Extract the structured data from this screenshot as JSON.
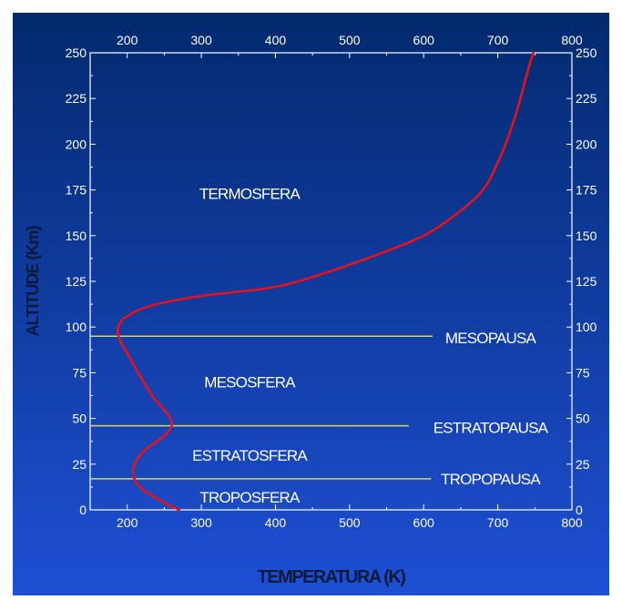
{
  "chart_data": {
    "type": "line",
    "xlabel": "TEMPERATURA (K)",
    "ylabel": "ALTITUDE (Km)",
    "xlim": [
      150,
      800
    ],
    "ylim": [
      0,
      250
    ],
    "xticks": [
      200,
      300,
      400,
      500,
      600,
      700,
      800
    ],
    "yticks": [
      0,
      25,
      50,
      75,
      100,
      125,
      150,
      175,
      200,
      225,
      250
    ],
    "grid": false,
    "series": [
      {
        "color": "#e8101a",
        "x": [
          270,
          250,
          225,
          212,
          208,
          210,
          222,
          248,
          260,
          255,
          238,
          222,
          205,
          190,
          188,
          200,
          235,
          300,
          400,
          470,
          540,
          600,
          645,
          680,
          700,
          715,
          727,
          737,
          744,
          748
        ],
        "y": [
          0,
          4,
          10,
          15,
          20,
          25,
          32,
          40,
          46,
          52,
          60,
          70,
          82,
          93,
          100,
          106,
          112,
          117,
          122,
          130,
          140,
          150,
          162,
          175,
          190,
          205,
          220,
          235,
          245,
          250
        ]
      }
    ],
    "boundaries": [
      {
        "label": "TROPOPAUSA",
        "altitude": 17,
        "x_end": 610,
        "color": "#d8d860"
      },
      {
        "label": "ESTRATOPAUSA",
        "altitude": 46,
        "x_end": 580,
        "color": "#d8d860"
      },
      {
        "label": "MESOPAUSA",
        "altitude": 95,
        "x_end": 612,
        "color": "#d8d860"
      }
    ],
    "regions": [
      {
        "label": "TROPOSFERA",
        "x": 365,
        "y": 7
      },
      {
        "label": "ESTRATOSFERA",
        "x": 365,
        "y": 30
      },
      {
        "label": "MESOSFERA",
        "x": 365,
        "y": 70
      },
      {
        "label": "TERMOSFERA",
        "x": 365,
        "y": 173
      }
    ],
    "boundary_label_positions": [
      {
        "label": "TROPOPAUSA",
        "x": 690,
        "y": 17
      },
      {
        "label": "ESTRATOPAUSA",
        "x": 690,
        "y": 45
      },
      {
        "label": "MESOPAUSA",
        "x": 690,
        "y": 94
      }
    ],
    "colors": {
      "background_top": "#032a6e",
      "background_bottom": "#1e4fd4",
      "axis": "#ffffff",
      "axis_title": "#0a1a3a"
    }
  }
}
